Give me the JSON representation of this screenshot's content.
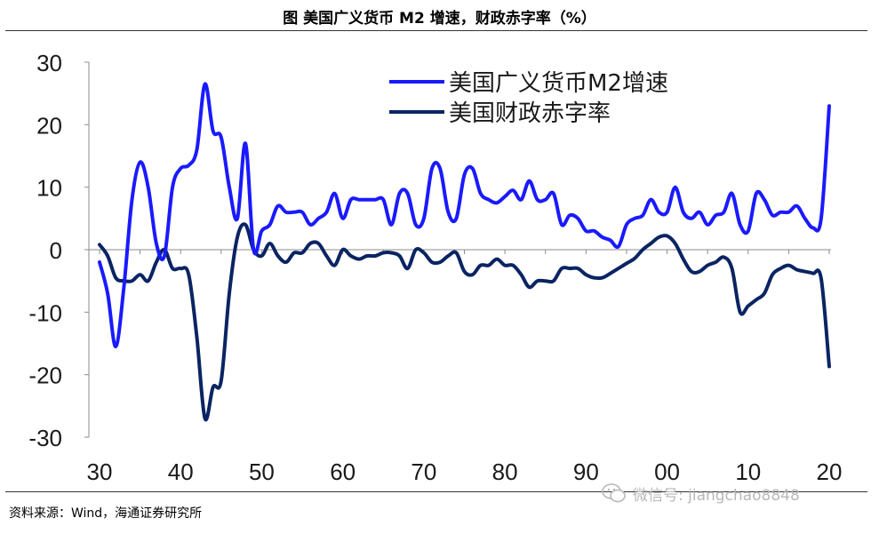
{
  "header": {
    "title": "图  美国广义货币 M2 增速，财政赤字率（%）"
  },
  "footer": {
    "source": "资料来源：Wind，海通证券研究所",
    "watermark": "微信号: jiangchao8848"
  },
  "chart_data": {
    "type": "line",
    "title": "图  美国广义货币 M2 增速，财政赤字率（%）",
    "xlabel": "",
    "ylabel": "",
    "x_ticks": [
      "30",
      "40",
      "50",
      "60",
      "70",
      "80",
      "90",
      "00",
      "10",
      "20"
    ],
    "xlim": [
      1930,
      2020
    ],
    "ylim": [
      -30,
      30
    ],
    "y_ticks": [
      "30",
      "20",
      "10",
      "0",
      "-10",
      "-20",
      "-30"
    ],
    "y_tick_values": [
      30,
      20,
      10,
      0,
      -10,
      -20,
      -30
    ],
    "grid": false,
    "legend_position": "top-right",
    "series": [
      {
        "name": "美国广义货币M2增速",
        "color": "#1a1aff",
        "x": [
          1930,
          1931,
          1932,
          1933,
          1934,
          1935,
          1936,
          1937,
          1938,
          1939,
          1940,
          1941,
          1942,
          1943,
          1944,
          1945,
          1946,
          1947,
          1948,
          1949,
          1950,
          1951,
          1952,
          1953,
          1954,
          1955,
          1956,
          1957,
          1958,
          1959,
          1960,
          1961,
          1962,
          1963,
          1964,
          1965,
          1966,
          1967,
          1968,
          1969,
          1970,
          1971,
          1972,
          1973,
          1974,
          1975,
          1976,
          1977,
          1978,
          1979,
          1980,
          1981,
          1982,
          1983,
          1984,
          1985,
          1986,
          1987,
          1988,
          1989,
          1990,
          1991,
          1992,
          1993,
          1994,
          1995,
          1996,
          1997,
          1998,
          1999,
          2000,
          2001,
          2002,
          2003,
          2004,
          2005,
          2006,
          2007,
          2008,
          2009,
          2010,
          2011,
          2012,
          2013,
          2014,
          2015,
          2016,
          2017,
          2018,
          2019,
          2020
        ],
        "values": [
          -2,
          -7,
          -15.5,
          -6,
          8,
          14,
          10,
          1,
          -1,
          10,
          13,
          13.5,
          16,
          26.5,
          19,
          18,
          10,
          5,
          17,
          0,
          3,
          4,
          7,
          6,
          6,
          6,
          4,
          5,
          6,
          9,
          5,
          8,
          8,
          8,
          8,
          8,
          4,
          9,
          9,
          4,
          5,
          13,
          13,
          6,
          5,
          12,
          13,
          9,
          8,
          7.5,
          8.5,
          9.5,
          8,
          11,
          8,
          8,
          9,
          4,
          5.5,
          5,
          3,
          3,
          2,
          1.5,
          0.5,
          4,
          5,
          5.5,
          8,
          6,
          6,
          10,
          6,
          5,
          6,
          4,
          5.5,
          6,
          9,
          4,
          3,
          9,
          8,
          5.5,
          6,
          6,
          7,
          5,
          3.5,
          5,
          23
        ]
      },
      {
        "name": "美国财政赤字率",
        "color": "#0a2463",
        "x": [
          1930,
          1931,
          1932,
          1933,
          1934,
          1935,
          1936,
          1937,
          1938,
          1939,
          1940,
          1941,
          1942,
          1943,
          1944,
          1945,
          1946,
          1947,
          1948,
          1949,
          1950,
          1951,
          1952,
          1953,
          1954,
          1955,
          1956,
          1957,
          1958,
          1959,
          1960,
          1961,
          1962,
          1963,
          1964,
          1965,
          1966,
          1967,
          1968,
          1969,
          1970,
          1971,
          1972,
          1973,
          1974,
          1975,
          1976,
          1977,
          1978,
          1979,
          1980,
          1981,
          1982,
          1983,
          1984,
          1985,
          1986,
          1987,
          1988,
          1989,
          1990,
          1991,
          1992,
          1993,
          1994,
          1995,
          1996,
          1997,
          1998,
          1999,
          2000,
          2001,
          2002,
          2003,
          2004,
          2005,
          2006,
          2007,
          2008,
          2009,
          2010,
          2011,
          2012,
          2013,
          2014,
          2015,
          2016,
          2017,
          2018,
          2019,
          2020
        ],
        "values": [
          0.8,
          -1,
          -4.5,
          -5,
          -5,
          -4,
          -5,
          -2,
          0,
          -3,
          -3,
          -4,
          -14,
          -27,
          -22,
          -21,
          -7,
          2,
          4,
          0,
          -1,
          1,
          -1,
          -2,
          -0.5,
          -0.5,
          1,
          1,
          -1,
          -2.5,
          0,
          -1,
          -1.5,
          -1,
          -1,
          -0.5,
          -0.5,
          -1,
          -3,
          0,
          -0.5,
          -2,
          -2,
          -1,
          -0.5,
          -3.5,
          -4,
          -2.5,
          -2.5,
          -1.5,
          -2.5,
          -2.5,
          -4,
          -6,
          -5,
          -5,
          -5,
          -3,
          -3,
          -3,
          -4,
          -4.5,
          -4.5,
          -3.8,
          -3,
          -2.2,
          -1.4,
          0,
          1,
          2,
          2.2,
          1,
          -1.5,
          -3.5,
          -3.5,
          -2.5,
          -2,
          -1.2,
          -3,
          -10,
          -9,
          -8,
          -7,
          -4,
          -3,
          -2.5,
          -3.2,
          -3.5,
          -3.8,
          -4.6,
          -18.7
        ]
      }
    ]
  }
}
